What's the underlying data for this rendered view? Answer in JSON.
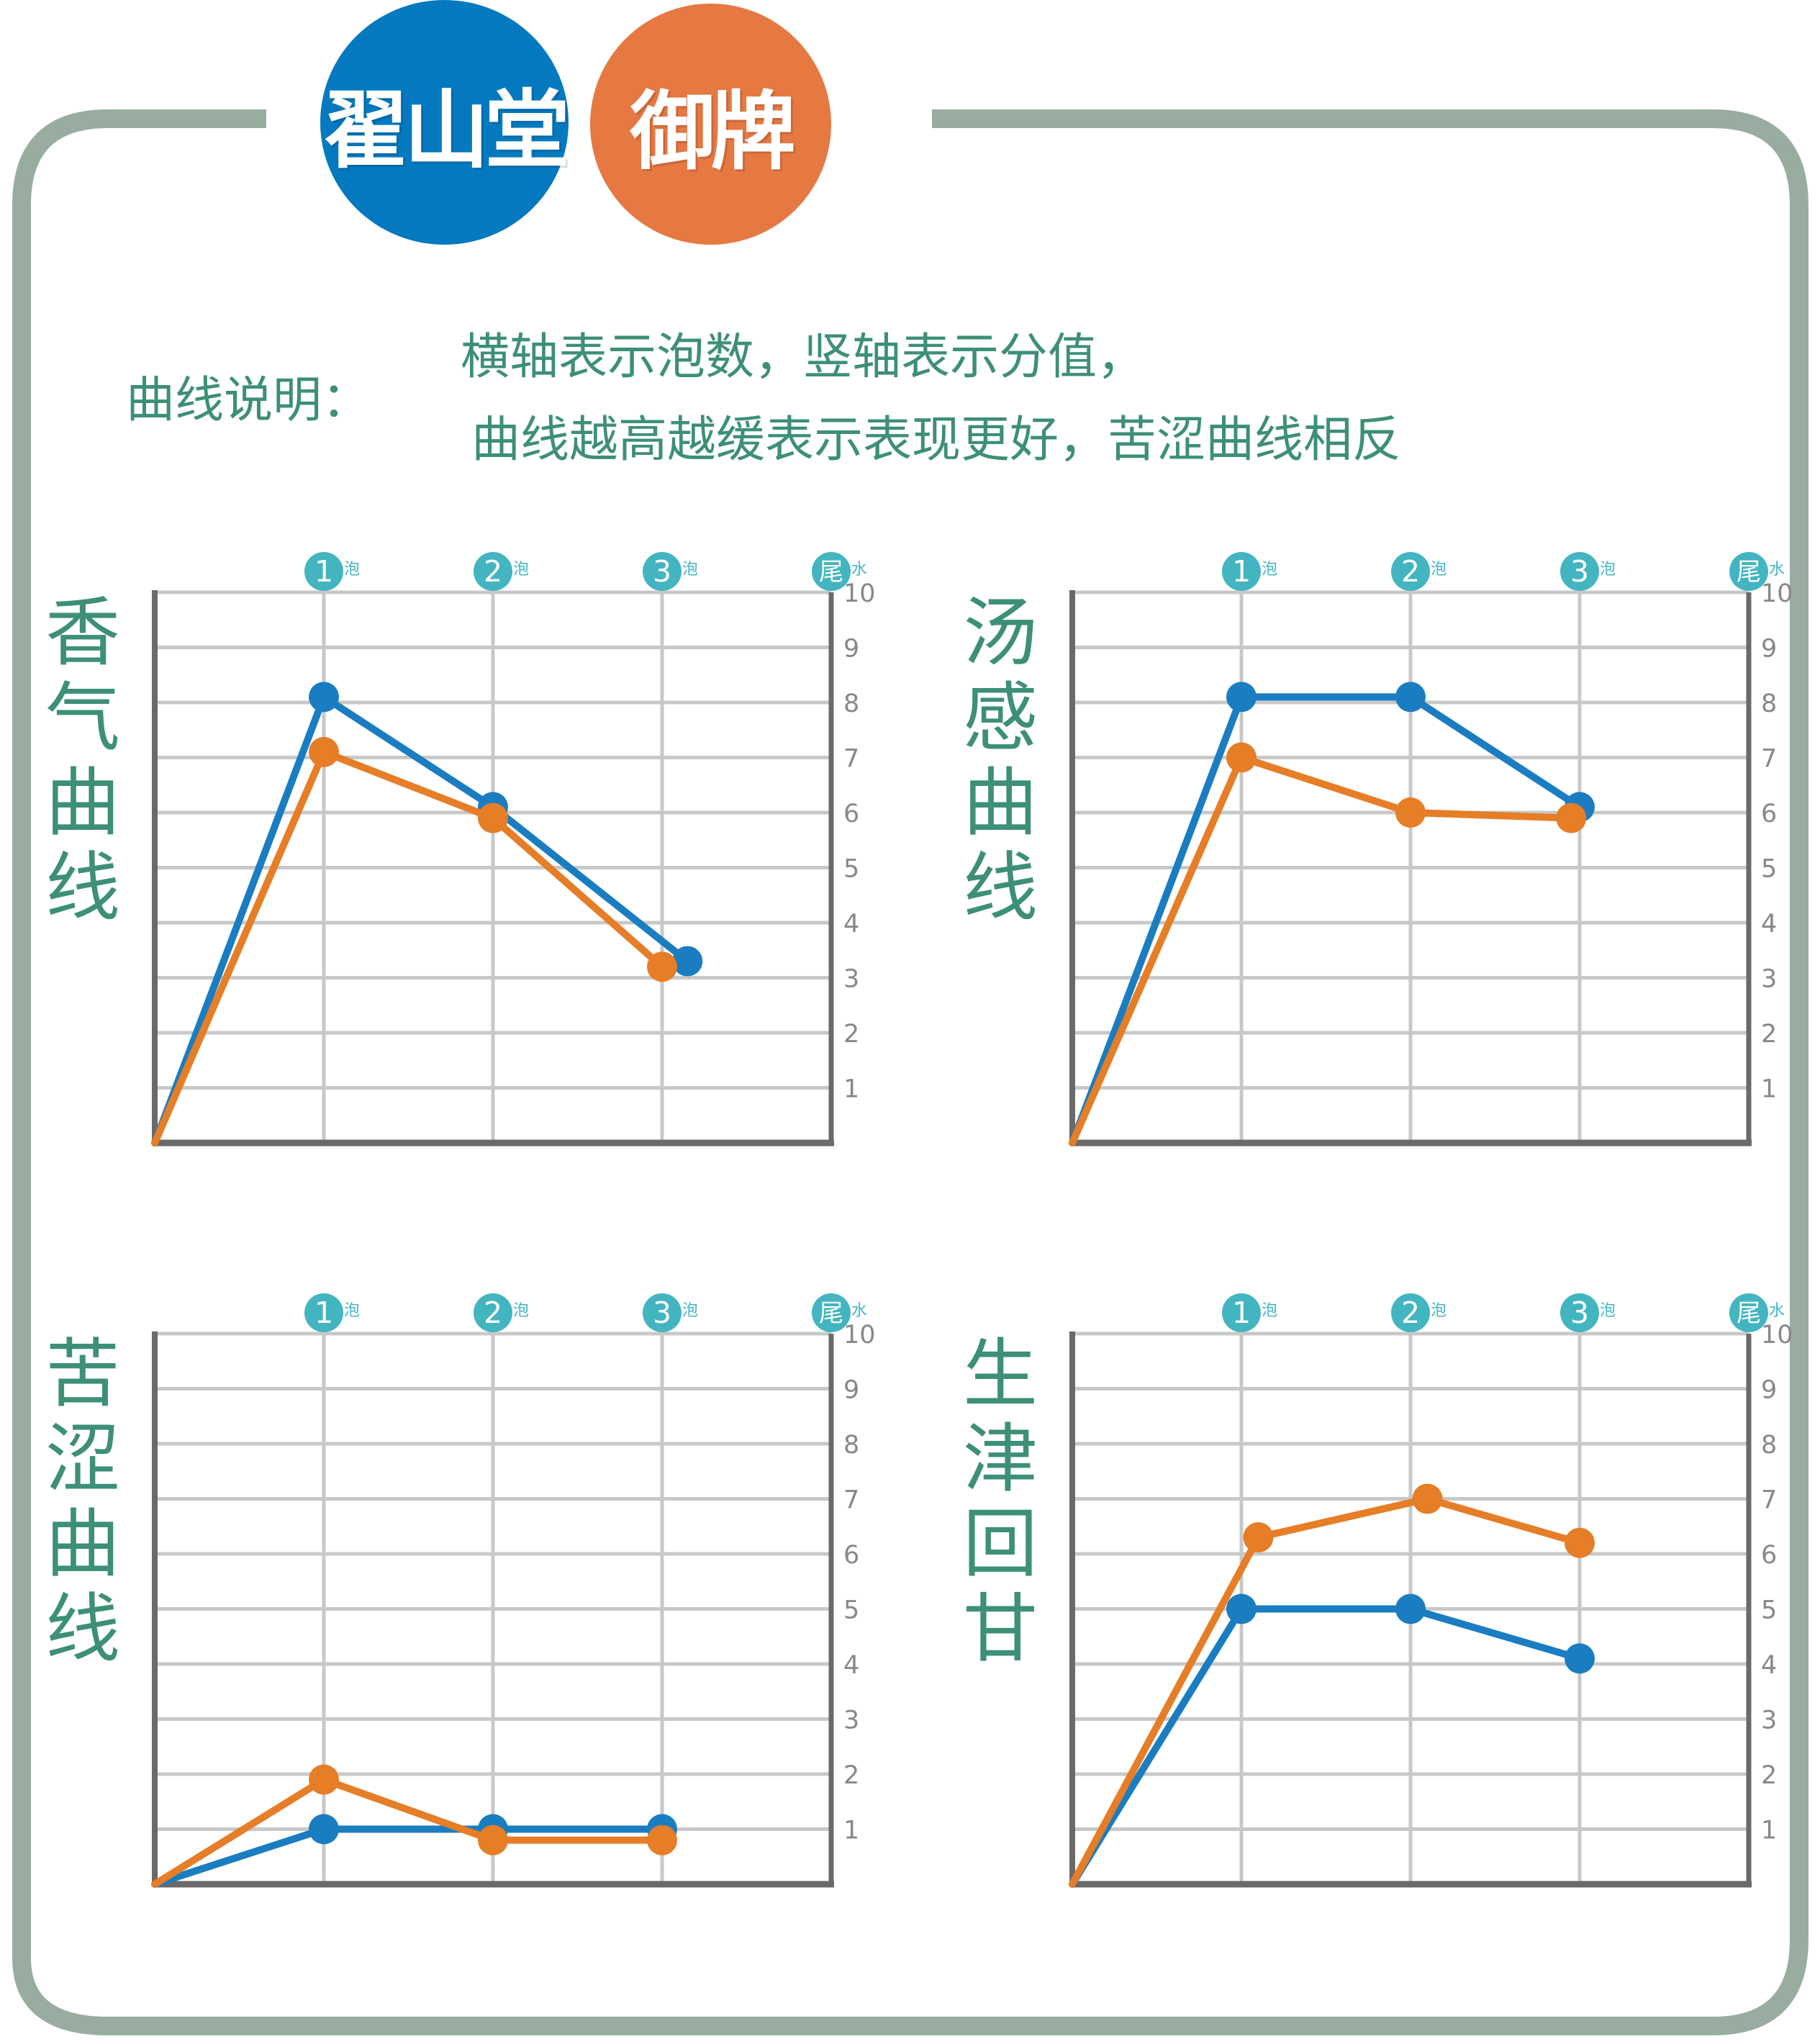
{
  "logo": {
    "left_text": "翟山堂",
    "right_text": "御牌",
    "left_color": "#0479bf",
    "right_color": "#e67842"
  },
  "legend": {
    "title": "曲线说明：",
    "line1": "横轴表示泡数，竖轴表示分值，",
    "line2": "曲线越高越缓表示表现更好，苦涩曲线相反"
  },
  "colors": {
    "frame": "#98ad9f",
    "text": "#3d8f78",
    "series_blue": "#1a7dc1",
    "series_orange": "#e67d27",
    "badge": "#43b5c1",
    "grid": "#c8c8c8",
    "axis": "#6a6a6a"
  },
  "chart_data": [
    {
      "type": "line",
      "title": "香气曲线",
      "categories": [
        "1",
        "2",
        "3",
        "尾"
      ],
      "category_suffix": [
        "泡",
        "泡",
        "泡",
        "水"
      ],
      "yticks": [
        "1",
        "2",
        "3",
        "4",
        "5",
        "6",
        "7",
        "8",
        "9",
        "10"
      ],
      "ylim": [
        0,
        10
      ],
      "series": [
        {
          "color": "#1a7dc1",
          "points": [
            [
              0,
              0
            ],
            [
              1,
              8.1
            ],
            [
              2,
              6.1
            ],
            [
              3.15,
              3.3
            ]
          ]
        },
        {
          "color": "#e67d27",
          "points": [
            [
              0,
              0
            ],
            [
              1,
              7.1
            ],
            [
              2,
              5.9
            ],
            [
              3,
              3.2
            ]
          ]
        }
      ]
    },
    {
      "type": "line",
      "title": "汤感曲线",
      "categories": [
        "1",
        "2",
        "3",
        "尾"
      ],
      "category_suffix": [
        "泡",
        "泡",
        "泡",
        "水"
      ],
      "yticks": [
        "1",
        "2",
        "3",
        "4",
        "5",
        "6",
        "7",
        "8",
        "9",
        "10"
      ],
      "ylim": [
        0,
        10
      ],
      "series": [
        {
          "color": "#1a7dc1",
          "points": [
            [
              0,
              0
            ],
            [
              1,
              8.1
            ],
            [
              2,
              8.1
            ],
            [
              3,
              6.1
            ]
          ]
        },
        {
          "color": "#e67d27",
          "points": [
            [
              0,
              0
            ],
            [
              1,
              7.0
            ],
            [
              2,
              6.0
            ],
            [
              2.95,
              5.9
            ]
          ]
        }
      ]
    },
    {
      "type": "line",
      "title": "苦涩曲线",
      "categories": [
        "1",
        "2",
        "3",
        "尾"
      ],
      "category_suffix": [
        "泡",
        "泡",
        "泡",
        "水"
      ],
      "yticks": [
        "1",
        "2",
        "3",
        "4",
        "5",
        "6",
        "7",
        "8",
        "9",
        "10"
      ],
      "ylim": [
        0,
        10
      ],
      "series": [
        {
          "color": "#1a7dc1",
          "points": [
            [
              0,
              0
            ],
            [
              1,
              1.0
            ],
            [
              2,
              1.0
            ],
            [
              3,
              1.0
            ]
          ]
        },
        {
          "color": "#e67d27",
          "points": [
            [
              0,
              0
            ],
            [
              1,
              1.9
            ],
            [
              2,
              0.8
            ],
            [
              3,
              0.8
            ]
          ]
        }
      ]
    },
    {
      "type": "line",
      "title": "生津回甘",
      "categories": [
        "1",
        "2",
        "3",
        "尾"
      ],
      "category_suffix": [
        "泡",
        "泡",
        "泡",
        "水"
      ],
      "yticks": [
        "1",
        "2",
        "3",
        "4",
        "5",
        "6",
        "7",
        "8",
        "9",
        "10"
      ],
      "ylim": [
        0,
        10
      ],
      "series": [
        {
          "color": "#1a7dc1",
          "points": [
            [
              0,
              0
            ],
            [
              1,
              5.0
            ],
            [
              2,
              5.0
            ],
            [
              3,
              4.1
            ]
          ]
        },
        {
          "color": "#e67d27",
          "points": [
            [
              0,
              0
            ],
            [
              1.1,
              6.3
            ],
            [
              2.1,
              7.0
            ],
            [
              3,
              6.2
            ]
          ]
        }
      ]
    }
  ]
}
